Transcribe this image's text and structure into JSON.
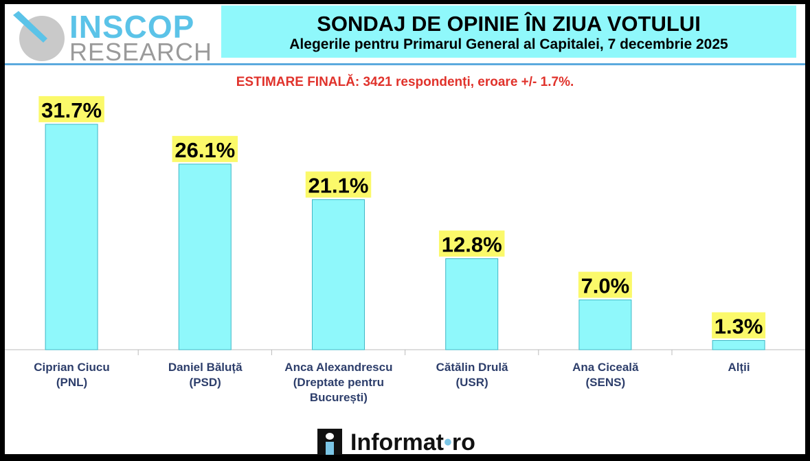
{
  "logo": {
    "text_top": "INSCOP",
    "text_bottom": "RESEARCH"
  },
  "header": {
    "title": "SONDAJ DE OPINIE ÎN ZIUA VOTULUI",
    "subtitle": "Alegerile pentru Primarul General al Capitalei, 7 decembrie 2025"
  },
  "note": "ESTIMARE FINALĂ: 3421 respondenți, eroare +/- 1.7%.",
  "footer": {
    "brand": "Informat",
    "brand_suffix": "ro"
  },
  "colors": {
    "bar": "#8ff8fb",
    "bar_stroke": "#3fb7c6",
    "label_bg": "#fbf96a",
    "note": "#e0322b",
    "category": "#2d3e6b"
  },
  "chart_data": {
    "type": "bar",
    "title": "SONDAJ DE OPINIE ÎN ZIUA VOTULUI",
    "categories": [
      [
        "Ciprian Ciucu",
        "(PNL)"
      ],
      [
        "Daniel Băluță",
        "(PSD)"
      ],
      [
        "Anca Alexandrescu",
        "(Dreptate pentru",
        "București)"
      ],
      [
        "Cătălin Drulă",
        "(USR)"
      ],
      [
        "Ana Ciceală",
        "(SENS)"
      ],
      [
        "Alții"
      ]
    ],
    "values": [
      31.7,
      26.1,
      21.1,
      12.8,
      7.0,
      1.3
    ],
    "value_labels": [
      "31.7%",
      "26.1%",
      "21.1%",
      "12.8%",
      "7.0%",
      "1.3%"
    ],
    "unit": "%",
    "ylim": [
      0,
      35
    ],
    "grid": false,
    "legend": "none"
  }
}
